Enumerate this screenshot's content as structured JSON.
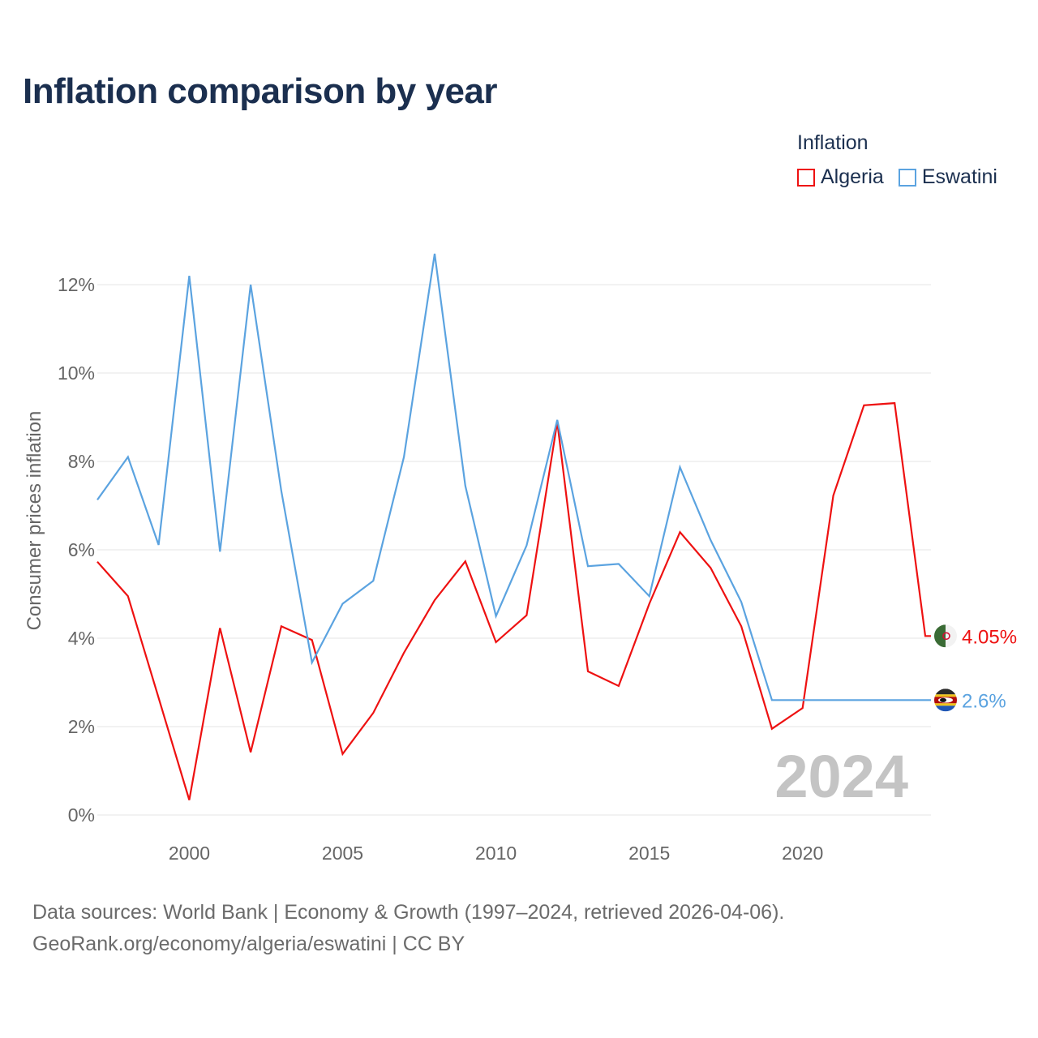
{
  "title": "Inflation comparison by year",
  "legend": {
    "title": "Inflation",
    "items": [
      {
        "label": "Algeria",
        "color": "#ee1111"
      },
      {
        "label": "Eswatini",
        "color": "#5ba3e0"
      }
    ]
  },
  "year_watermark": "2024",
  "footer": {
    "line1": "Data sources: World Bank | Economy & Growth (1997–2024, retrieved 2026-04-06).",
    "line2": "GeoRank.org/economy/algeria/eswatini | CC BY"
  },
  "chart_data": {
    "type": "line",
    "title": "Inflation comparison by year",
    "xlabel": "",
    "ylabel": "Consumer prices inflation",
    "x": [
      1997,
      1998,
      1999,
      2000,
      2001,
      2002,
      2003,
      2004,
      2005,
      2006,
      2007,
      2008,
      2009,
      2010,
      2011,
      2012,
      2013,
      2014,
      2015,
      2016,
      2017,
      2018,
      2019,
      2020,
      2021,
      2022,
      2023,
      2024
    ],
    "xlim": [
      1997,
      2024
    ],
    "ylim": [
      0,
      12.5
    ],
    "xticks": [
      2000,
      2005,
      2010,
      2015,
      2020
    ],
    "xtick_labels": [
      "2000",
      "2005",
      "2010",
      "2015",
      "2020"
    ],
    "yticks": [
      0,
      2,
      4,
      6,
      8,
      10,
      12
    ],
    "ytick_labels": [
      "0%",
      "2%",
      "4%",
      "6%",
      "8%",
      "10%",
      "12%"
    ],
    "grid": true,
    "legend_position": "top-right",
    "series": [
      {
        "name": "Algeria",
        "color": "#ee1111",
        "values": [
          5.73,
          4.95,
          2.65,
          0.34,
          4.23,
          1.42,
          4.27,
          3.96,
          1.38,
          2.31,
          3.67,
          4.86,
          5.74,
          3.91,
          4.52,
          8.89,
          3.25,
          2.92,
          4.78,
          6.4,
          5.59,
          4.27,
          1.95,
          2.42,
          7.23,
          9.27,
          9.32,
          4.05
        ],
        "end_label": "4.05%"
      },
      {
        "name": "Eswatini",
        "color": "#5ba3e0",
        "values": [
          7.13,
          8.1,
          6.11,
          12.2,
          5.96,
          12.0,
          7.33,
          3.45,
          4.78,
          5.3,
          8.1,
          12.7,
          7.45,
          4.5,
          6.1,
          8.94,
          5.63,
          5.68,
          4.95,
          7.87,
          6.22,
          4.82,
          2.6,
          2.6,
          2.6,
          2.6,
          2.6,
          2.6
        ],
        "end_label": "2.6%"
      }
    ]
  }
}
